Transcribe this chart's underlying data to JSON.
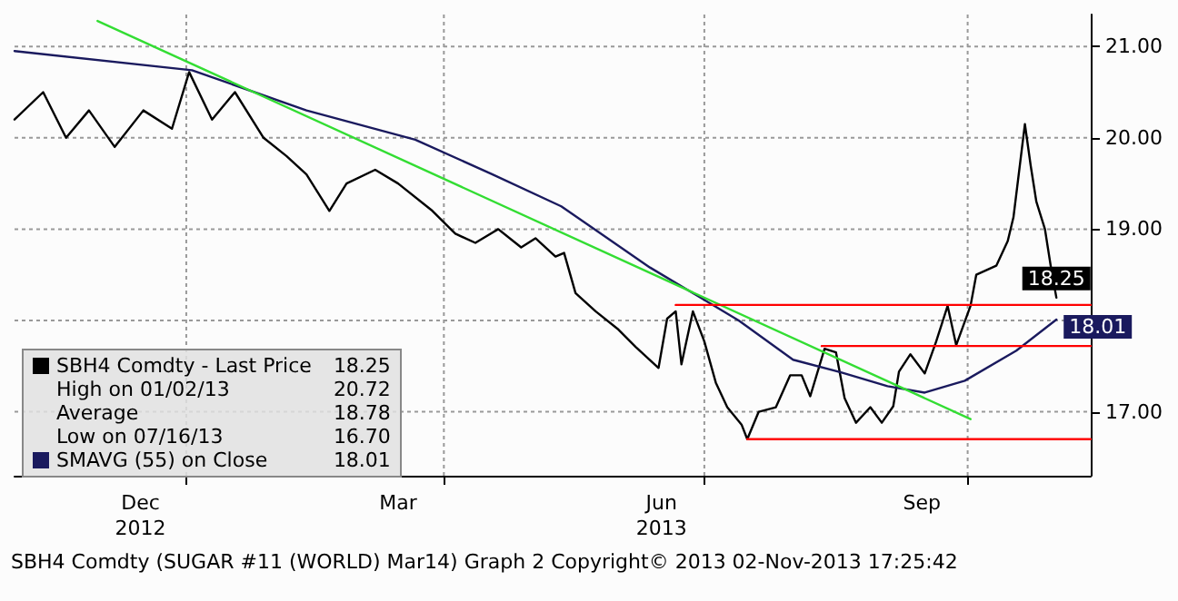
{
  "chart_data": {
    "type": "line",
    "annotations": [
      "High on 01/02/13 20.72",
      "Average 18.78",
      "Low on 07/16/13 16.70",
      "SBH4 Comdty (SUGAR #11 (WORLD) Mar14) Graph 2 Copyright© 2013 02-Nov-2013 17:25:42"
    ],
    "xlim": [
      "2012-11-02",
      "2013-11-13"
    ],
    "xticks": [
      {
        "value": "2012-12-16",
        "label": "Dec\n2012"
      },
      {
        "value": "2013-01-01",
        "label": null
      },
      {
        "value": "2013-03-16",
        "label": "Mar"
      },
      {
        "value": "2013-04-01",
        "label": null
      },
      {
        "value": "2013-06-16",
        "label": "Jun\n2013"
      },
      {
        "value": "2013-07-01",
        "label": null
      },
      {
        "value": "2013-09-15",
        "label": "Sep"
      },
      {
        "value": "2013-10-01",
        "label": null
      }
    ],
    "ylim": [
      16.3,
      21.35
    ],
    "yticks": [
      {
        "value": 17,
        "label": "17.00"
      },
      {
        "value": 18,
        "label": null
      },
      {
        "value": 19,
        "label": "19.00"
      },
      {
        "value": 20,
        "label": "20.00"
      },
      {
        "value": 21,
        "label": "21.00"
      }
    ],
    "grid": true,
    "legend": "bottom left",
    "marker": "none",
    "line_style": "solid",
    "series": [
      {
        "name": "SBH4 Comdty - Last Price",
        "color": "#000000",
        "x": [
          "2012-11-02",
          "2012-11-12",
          "2012-11-20",
          "2012-11-28",
          "2012-12-07",
          "2012-12-17",
          "2012-12-27",
          "2013-01-02",
          "2013-01-10",
          "2013-01-18",
          "2013-01-28",
          "2013-02-05",
          "2013-02-12",
          "2013-02-20",
          "2013-02-26",
          "2013-03-08",
          "2013-03-16",
          "2013-03-28",
          "2013-04-05",
          "2013-04-12",
          "2013-04-20",
          "2013-04-28",
          "2013-05-03",
          "2013-05-10",
          "2013-05-13",
          "2013-05-17",
          "2013-05-24",
          "2013-06-01",
          "2013-06-07",
          "2013-06-15",
          "2013-06-18",
          "2013-06-21",
          "2013-06-23",
          "2013-06-27",
          "2013-07-01",
          "2013-07-05",
          "2013-07-09",
          "2013-07-14",
          "2013-07-16",
          "2013-07-20",
          "2013-07-26",
          "2013-07-31",
          "2013-08-04",
          "2013-08-07",
          "2013-08-12",
          "2013-08-16",
          "2013-08-19",
          "2013-08-23",
          "2013-08-28",
          "2013-09-01",
          "2013-09-05",
          "2013-09-07",
          "2013-09-11",
          "2013-09-16",
          "2013-09-20",
          "2013-09-24",
          "2013-09-27",
          "2013-10-02",
          "2013-10-04",
          "2013-10-11",
          "2013-10-15",
          "2013-10-17",
          "2013-10-21",
          "2013-10-23",
          "2013-10-25",
          "2013-10-28",
          "2013-10-30",
          "2013-11-01"
        ],
        "values": [
          20.2,
          20.5,
          20.0,
          20.3,
          19.9,
          20.3,
          20.1,
          20.72,
          20.2,
          20.5,
          20.0,
          19.8,
          19.6,
          19.2,
          19.5,
          19.65,
          19.5,
          19.2,
          18.95,
          18.85,
          19.0,
          18.8,
          18.9,
          18.7,
          18.74,
          18.3,
          18.1,
          17.9,
          17.71,
          17.48,
          18.02,
          18.1,
          17.52,
          18.1,
          17.77,
          17.32,
          17.05,
          16.86,
          16.7,
          17.0,
          17.05,
          17.4,
          17.4,
          17.17,
          17.69,
          17.65,
          17.15,
          16.88,
          17.05,
          16.88,
          17.06,
          17.44,
          17.63,
          17.42,
          17.77,
          18.16,
          17.73,
          18.16,
          18.5,
          18.6,
          18.87,
          19.13,
          20.15,
          19.7,
          19.3,
          19.0,
          18.6,
          18.25
        ],
        "value_labels": [
          null,
          null,
          null,
          null,
          null,
          null,
          null,
          null,
          null,
          null,
          null,
          null,
          null,
          null,
          null,
          null,
          null,
          null,
          null,
          null,
          null,
          null,
          null,
          null,
          null,
          null,
          null,
          null,
          null,
          null,
          null,
          null,
          null,
          null,
          null,
          null,
          null,
          null,
          null,
          null,
          null,
          null,
          null,
          null,
          null,
          null,
          null,
          null,
          null,
          null,
          null,
          null,
          null,
          null,
          null,
          null,
          null,
          null,
          null,
          null,
          null,
          null,
          null,
          null,
          null,
          null,
          null,
          "18.25"
        ]
      },
      {
        "name": "SMAVG (55) on Close",
        "color": "#1a1a5e",
        "x": [
          "2012-11-02",
          "2013-01-03",
          "2013-02-12",
          "2013-03-22",
          "2013-04-18",
          "2013-05-12",
          "2013-06-12",
          "2013-07-13",
          "2013-08-01",
          "2013-08-18",
          "2013-09-03",
          "2013-09-16",
          "2013-09-30",
          "2013-10-18",
          "2013-11-01"
        ],
        "values": [
          20.95,
          20.74,
          20.3,
          19.98,
          19.6,
          19.25,
          18.58,
          18.0,
          17.57,
          17.43,
          17.28,
          17.21,
          17.34,
          17.67,
          18.01
        ],
        "value_labels": [
          null,
          null,
          null,
          null,
          null,
          null,
          null,
          null,
          null,
          null,
          null,
          null,
          null,
          null,
          "18.01"
        ]
      },
      {
        "color": "#33dd33",
        "x": [
          "2012-12-01",
          "2013-10-02"
        ],
        "values": [
          21.28,
          16.92
        ]
      },
      {
        "color": "#ff0000",
        "x": [
          "2013-06-21",
          "2013-11-13"
        ],
        "values": [
          18.17,
          18.17
        ]
      },
      {
        "color": "#ff0000",
        "x": [
          "2013-08-11",
          "2013-11-13"
        ],
        "values": [
          17.72,
          17.72
        ]
      },
      {
        "color": "#ff0000",
        "x": [
          "2013-07-16",
          "2013-11-13"
        ],
        "values": [
          16.7,
          16.7
        ]
      }
    ]
  }
}
